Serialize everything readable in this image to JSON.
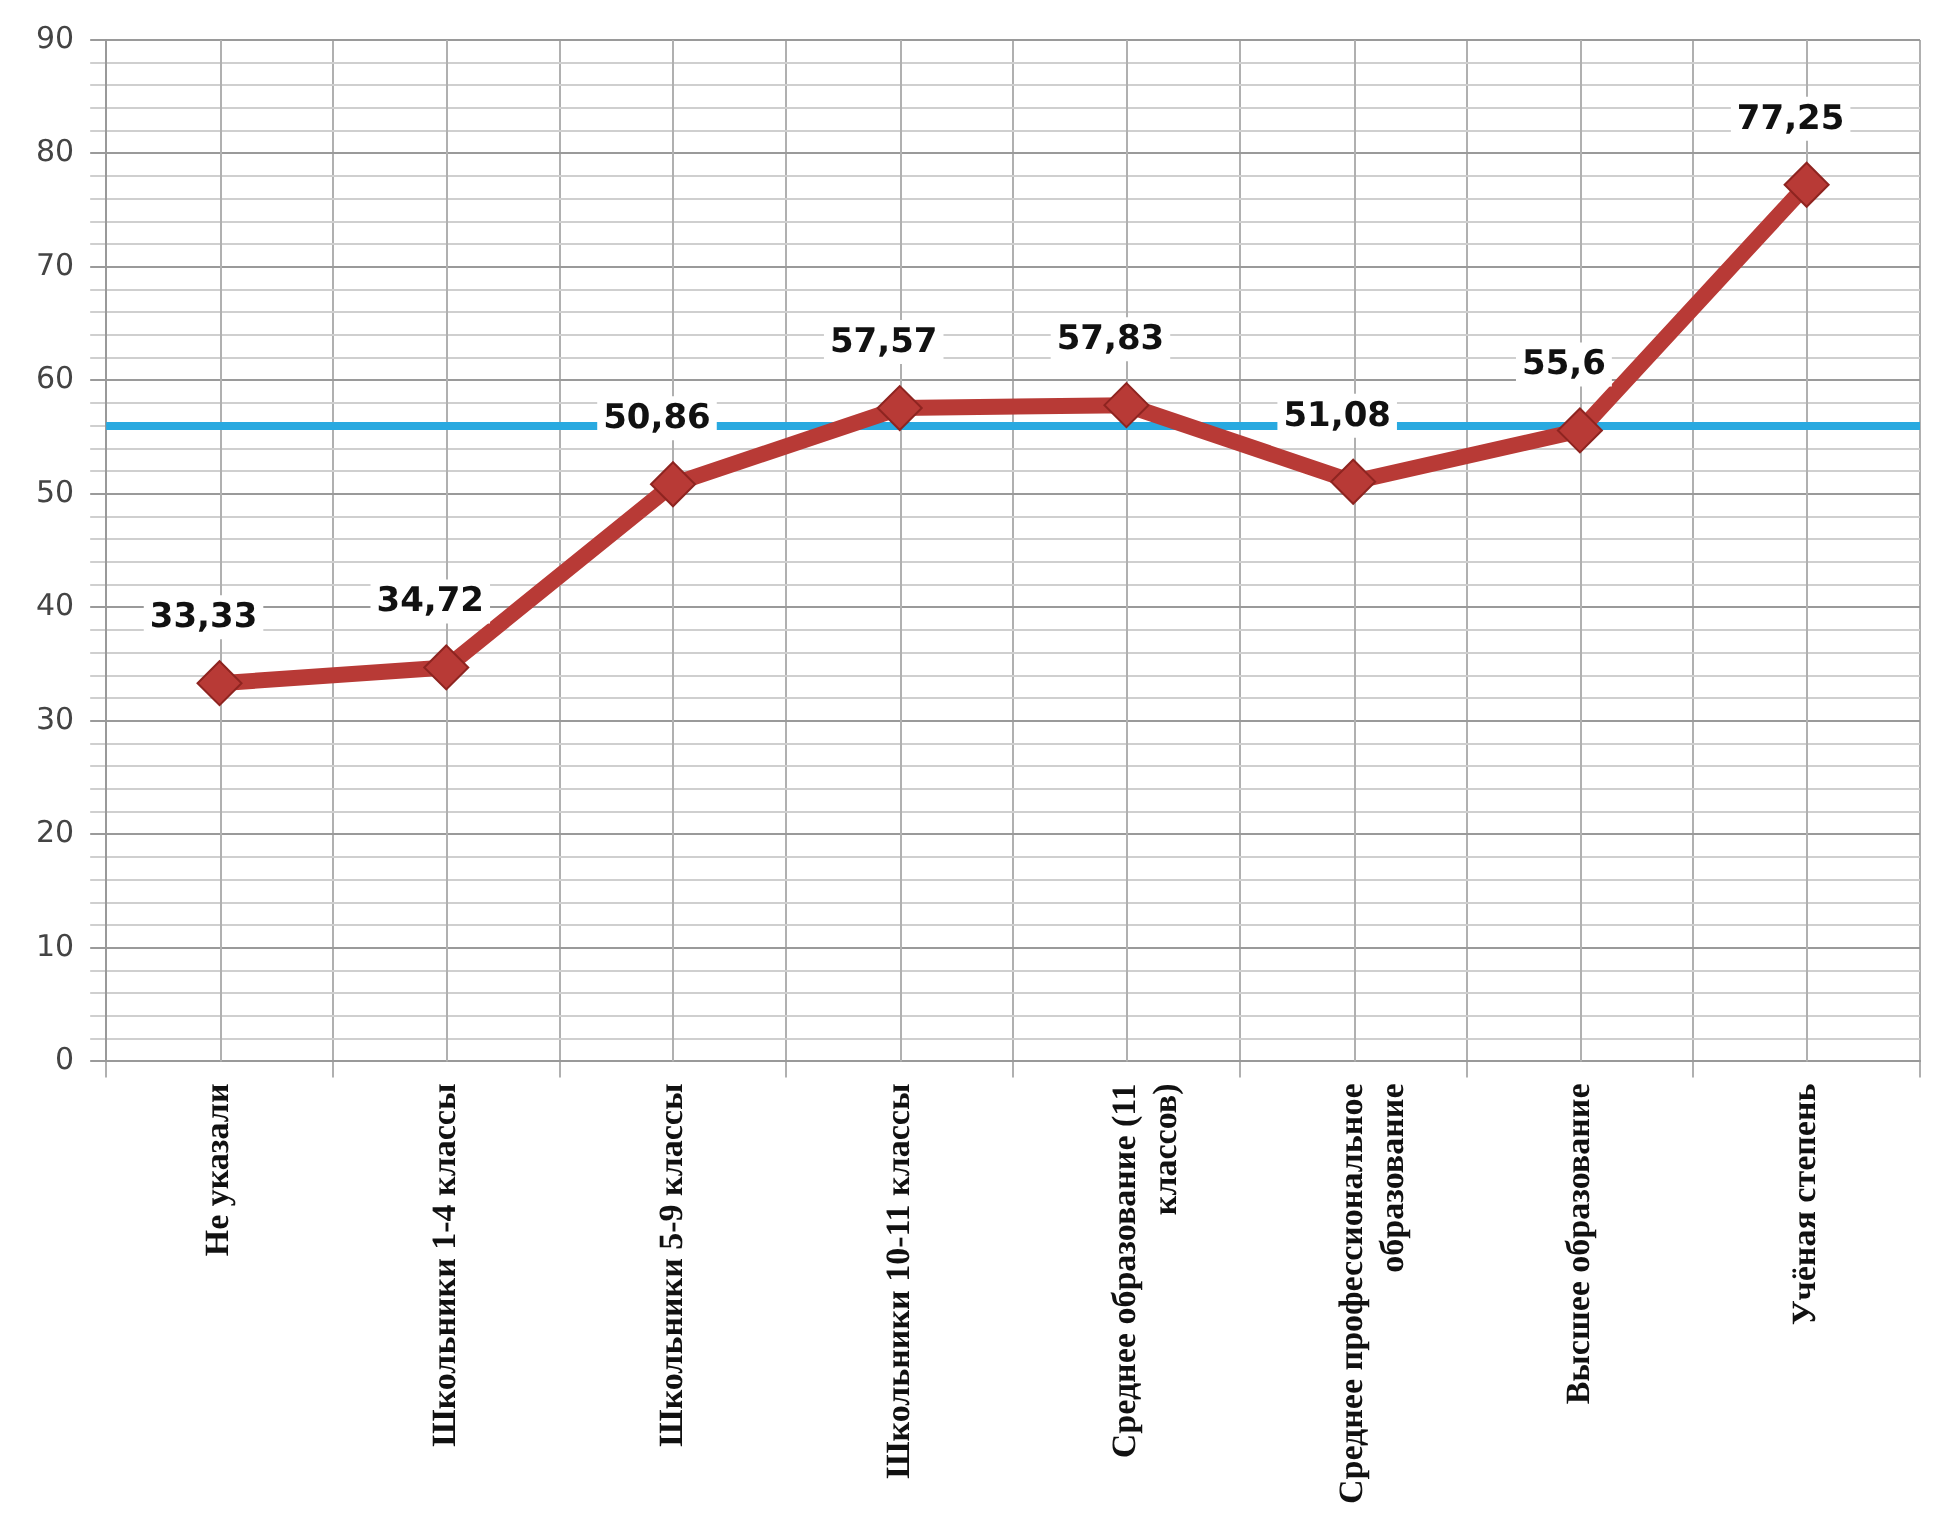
{
  "chart_data": {
    "type": "line",
    "categories": [
      "Не указали",
      "Школьники 1-4 классы",
      "Школьники 5-9 классы",
      "Школьники 10-11 классы",
      "Среднее образование (11 классов)",
      "Среднее профессиональное образование",
      "Высшее образование",
      "Учёная степень"
    ],
    "series": [
      {
        "color": "#b83a36",
        "values": [
          33.33,
          34.72,
          50.86,
          57.57,
          57.83,
          51.08,
          55.6,
          77.25
        ],
        "value_labels": [
          "33,33",
          "34,72",
          "50,86",
          "57,57",
          "57,83",
          "51,08",
          "55,6",
          "77,25"
        ]
      }
    ],
    "ylim": [
      0,
      90
    ],
    "yticks": [
      0,
      {
        "value": 2,
        "label": null
      },
      {
        "value": 4,
        "label": null
      },
      {
        "value": 6,
        "label": null
      },
      {
        "value": 8,
        "label": null
      },
      10,
      {
        "value": 12,
        "label": null
      },
      {
        "value": 14,
        "label": null
      },
      {
        "value": 16,
        "label": null
      },
      {
        "value": 18,
        "label": null
      },
      20,
      {
        "value": 22,
        "label": null
      },
      {
        "value": 24,
        "label": null
      },
      {
        "value": 26,
        "label": null
      },
      {
        "value": 28,
        "label": null
      },
      30,
      {
        "value": 32,
        "label": null
      },
      {
        "value": 34,
        "label": null
      },
      {
        "value": 36,
        "label": null
      },
      {
        "value": 38,
        "label": null
      },
      40,
      {
        "value": 42,
        "label": null
      },
      {
        "value": 44,
        "label": null
      },
      {
        "value": 46,
        "label": null
      },
      {
        "value": 48,
        "label": null
      },
      50,
      {
        "value": 52,
        "label": null
      },
      {
        "value": 54,
        "label": null
      },
      {
        "value": 56,
        "label": null
      },
      {
        "value": 58,
        "label": null
      },
      60,
      {
        "value": 62,
        "label": null
      },
      {
        "value": 64,
        "label": null
      },
      {
        "value": 66,
        "label": null
      },
      {
        "value": 68,
        "label": null
      },
      70,
      {
        "value": 72,
        "label": null
      },
      {
        "value": 74,
        "label": null
      },
      {
        "value": 76,
        "label": null
      },
      {
        "value": 78,
        "label": null
      },
      80,
      {
        "value": 82,
        "label": null
      },
      {
        "value": 84,
        "label": null
      },
      {
        "value": 86,
        "label": null
      },
      {
        "value": 88,
        "label": null
      },
      90
    ],
    "ref_lines": [
      {
        "axis": "y",
        "value": 56,
        "color": "#29a9e0"
      }
    ],
    "grid": true,
    "marker": "diamond",
    "line_style": "solid",
    "legend": false
  }
}
